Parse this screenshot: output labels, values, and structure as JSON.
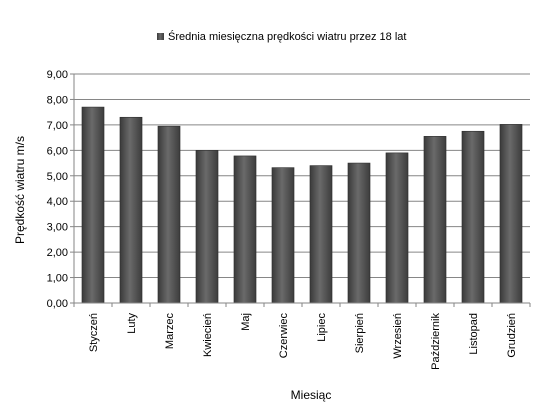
{
  "chart_data": {
    "type": "bar",
    "categories": [
      "Styczeń",
      "Luty",
      "Marzec",
      "Kwiecień",
      "Maj",
      "Czerwiec",
      "Lipiec",
      "Sierpień",
      "Wrzesień",
      "Październik",
      "Listopad",
      "Grudzień"
    ],
    "series": [
      {
        "name": "Średnia miesięczna prędkości  wiatru przez 18 lat",
        "values": [
          7.7,
          7.3,
          6.95,
          6.0,
          5.78,
          5.32,
          5.4,
          5.5,
          5.9,
          6.55,
          6.75,
          7.02
        ]
      }
    ],
    "xlabel": "Miesiąc",
    "ylabel": "Prędkość wiatru m/s",
    "ylim": [
      0,
      9
    ],
    "yticks": [
      "0,00",
      "1,00",
      "2,00",
      "3,00",
      "4,00",
      "5,00",
      "6,00",
      "7,00",
      "8,00",
      "9,00"
    ],
    "grid": true,
    "legend_position": "top",
    "bar_color": "#555555"
  }
}
